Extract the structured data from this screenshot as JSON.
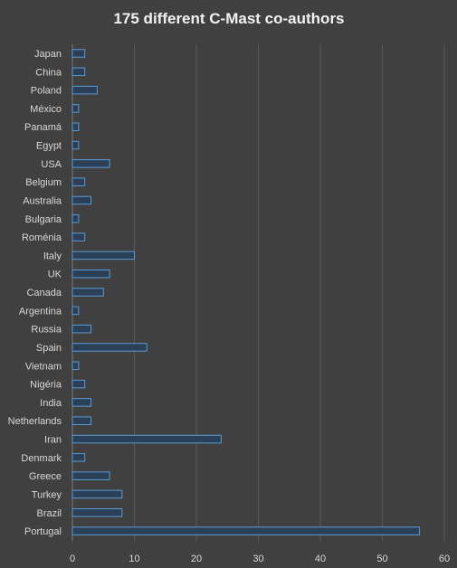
{
  "chart_data": {
    "type": "bar",
    "orientation": "horizontal",
    "title": "175 different C-Mast co-authors",
    "categories": [
      "Japan",
      "China",
      "Poland",
      "México",
      "Panamá",
      "Egypt",
      "USA",
      "Belgium",
      "Australia",
      "Bulgaria",
      "Roménia",
      "Italy",
      "UK",
      "Canada",
      "Argentina",
      "Russia",
      "Spain",
      "Vietnam",
      "Nigéria",
      "India",
      "Netherlands",
      "Iran",
      "Denmark",
      "Greece",
      "Turkey",
      "Brazil",
      "Portugal"
    ],
    "values": [
      2,
      2,
      4,
      1,
      1,
      1,
      6,
      2,
      3,
      1,
      2,
      10,
      6,
      5,
      1,
      3,
      12,
      1,
      2,
      3,
      3,
      24,
      2,
      6,
      8,
      8,
      56
    ],
    "xlim": [
      0,
      60
    ],
    "xticks": [
      0,
      10,
      20,
      30,
      40,
      50,
      60
    ],
    "grid": true,
    "legend": "none",
    "colors": {
      "background": "#404040",
      "bar_fill": "#2b3f57",
      "bar_stroke": "#5b9bd5",
      "text": "#d9d9d9",
      "title": "#f2f2f2",
      "grid": "#5a5a5a"
    }
  }
}
